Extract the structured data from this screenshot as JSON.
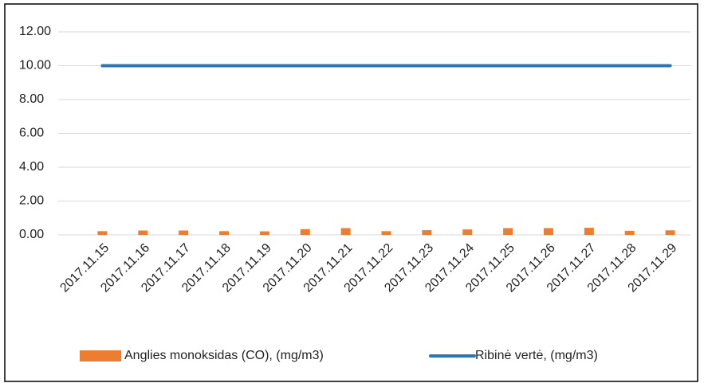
{
  "chart_data": {
    "type": "bar",
    "categories": [
      "2017.11.15",
      "2017.11.16",
      "2017.11.17",
      "2017.11.18",
      "2017.11.19",
      "2017.11.20",
      "2017.11.21",
      "2017.11.22",
      "2017.11.23",
      "2017.11.24",
      "2017.11.25",
      "2017.11.26",
      "2017.11.27",
      "2017.11.28",
      "2017.11.29"
    ],
    "series": [
      {
        "name": "Anglies monoksidas (CO), (mg/m3)",
        "type": "bar",
        "color": "#ed7d31",
        "values": [
          0.22,
          0.26,
          0.26,
          0.22,
          0.21,
          0.34,
          0.4,
          0.22,
          0.28,
          0.32,
          0.4,
          0.4,
          0.42,
          0.24,
          0.27
        ]
      },
      {
        "name": "Ribinė vertė, (mg/m3)",
        "type": "line",
        "color": "#2e75b6",
        "values": [
          10,
          10,
          10,
          10,
          10,
          10,
          10,
          10,
          10,
          10,
          10,
          10,
          10,
          10,
          10
        ]
      }
    ],
    "ylim": [
      0,
      12
    ],
    "yticks": [
      {
        "value": 0,
        "label": "0.00"
      },
      {
        "value": 2,
        "label": "2.00"
      },
      {
        "value": 4,
        "label": "4.00"
      },
      {
        "value": 6,
        "label": "6.00"
      },
      {
        "value": 8,
        "label": "8.00"
      },
      {
        "value": 10,
        "label": "10.00"
      },
      {
        "value": 12,
        "label": "12.00"
      }
    ],
    "grid": true,
    "legend": "bottom"
  }
}
